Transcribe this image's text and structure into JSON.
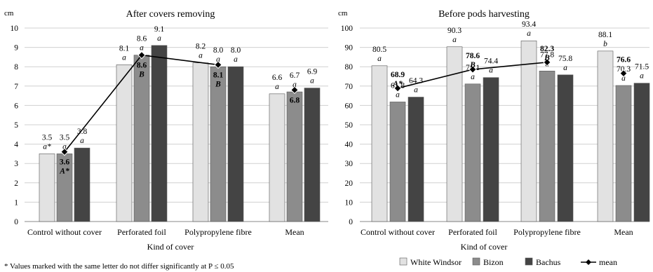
{
  "footnote": "* Values marked with the same letter do not differ significantly at P ≤ 0.05",
  "legend": {
    "items": [
      {
        "label": "White Windsor",
        "color": "#e2e2e2"
      },
      {
        "label": "Bizon",
        "color": "#8c8c8c"
      },
      {
        "label": "Bachus",
        "color": "#444444"
      },
      {
        "label": "mean",
        "marker": "diamond-line"
      }
    ]
  },
  "chart_data": [
    {
      "type": "bar",
      "title": "After covers removing",
      "unit": "cm",
      "xlabel": "Kind of cover",
      "ylabel": "",
      "ylim": [
        0,
        10
      ],
      "yticks": [
        "0",
        "1",
        "2",
        "3",
        "4",
        "5",
        "6",
        "7",
        "8",
        "9",
        "10"
      ],
      "grid": true,
      "categories": [
        "Control without cover",
        "Perforated foil",
        "Polypropylene fibre",
        "Mean"
      ],
      "series": [
        {
          "name": "White Windsor",
          "color": "#e2e2e2",
          "values": [
            3.5,
            8.1,
            8.2,
            6.6
          ],
          "labels": [
            "3.5",
            "8.1",
            "8.2",
            "6.6"
          ],
          "letters": [
            "a*",
            "a",
            "a",
            "a"
          ]
        },
        {
          "name": "Bizon",
          "color": "#8c8c8c",
          "values": [
            3.5,
            8.6,
            8.0,
            6.7
          ],
          "labels": [
            "3.5",
            "8.6",
            "8.0",
            "6.7"
          ],
          "letters": [
            "a",
            "a",
            "a",
            "a"
          ]
        },
        {
          "name": "Bachus",
          "color": "#444444",
          "values": [
            3.8,
            9.1,
            8.0,
            6.9
          ],
          "labels": [
            "3.8",
            "9.1",
            "8.0",
            "6.9"
          ],
          "letters": [
            "a",
            "a",
            "a",
            "a"
          ]
        }
      ],
      "mean": {
        "name": "mean",
        "values": [
          3.6,
          8.6,
          8.1,
          6.8
        ],
        "labels": [
          "3.6",
          "8.6",
          "8.1",
          "6.8"
        ],
        "letters": [
          "A*",
          "B",
          "B",
          ""
        ],
        "line_segments": 3
      }
    },
    {
      "type": "bar",
      "title": "Before pods harvesting",
      "unit": "cm",
      "xlabel": "Kind of cover",
      "ylabel": "",
      "ylim": [
        0,
        100
      ],
      "yticks": [
        "0",
        "10",
        "20",
        "30",
        "40",
        "50",
        "60",
        "70",
        "80",
        "90",
        "100"
      ],
      "grid": true,
      "categories": [
        "Control without cover",
        "Perforated foil",
        "Polypropylene fibre",
        "Mean"
      ],
      "series": [
        {
          "name": "White Windsor",
          "color": "#e2e2e2",
          "values": [
            80.5,
            90.3,
            93.4,
            88.1
          ],
          "labels": [
            "80.5",
            "90.3",
            "93.4",
            "88.1"
          ],
          "letters": [
            "a",
            "a",
            "a",
            "b"
          ]
        },
        {
          "name": "Bizon",
          "color": "#8c8c8c",
          "values": [
            61.8,
            71.1,
            77.8,
            70.3
          ],
          "labels": [
            "61.8",
            "71.1",
            "77.8",
            "70.3"
          ],
          "letters": [
            "a",
            "a",
            "a",
            "a"
          ]
        },
        {
          "name": "Bachus",
          "color": "#444444",
          "values": [
            64.3,
            74.4,
            75.8,
            71.5
          ],
          "labels": [
            "64.3",
            "74.4",
            "75.8",
            "71.5"
          ],
          "letters": [
            "a",
            "a",
            "a",
            "a"
          ]
        }
      ],
      "mean": {
        "name": "mean",
        "values": [
          68.9,
          78.6,
          82.3,
          76.6
        ],
        "labels": [
          "68.9",
          "78.6",
          "82.3",
          "76.6"
        ],
        "letters": [
          "A*",
          "B",
          "B",
          ""
        ],
        "line_segments": 3
      }
    }
  ]
}
